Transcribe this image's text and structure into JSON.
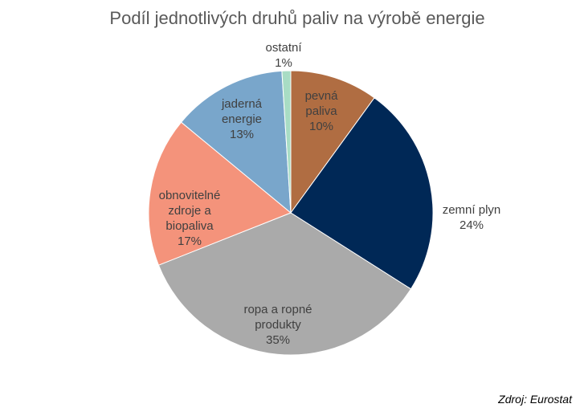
{
  "chart_data": {
    "type": "pie",
    "title": "Podíl jednotlivých druhů paliv na výrobě energie",
    "slices": [
      {
        "label_lines": [
          "pevná",
          "paliva"
        ],
        "value": 10,
        "value_text": "10%",
        "color": "#b06d42"
      },
      {
        "label_lines": [
          "zemní plyn"
        ],
        "value": 24,
        "value_text": "24%",
        "color": "#002856"
      },
      {
        "label_lines": [
          "ropa a ropné",
          "produkty"
        ],
        "value": 35,
        "value_text": "35%",
        "color": "#aaaaaa"
      },
      {
        "label_lines": [
          "obnovitelné",
          "zdroje a",
          "biopaliva"
        ],
        "value": 17,
        "value_text": "17%",
        "color": "#f4937b"
      },
      {
        "label_lines": [
          "jaderná",
          "energie"
        ],
        "value": 13,
        "value_text": "13%",
        "color": "#79a6cb"
      },
      {
        "label_lines": [
          "ostatní"
        ],
        "value": 1,
        "value_text": "1%",
        "color": "#a8dcc4"
      }
    ],
    "start": "12 o'clock, clockwise",
    "legend": "none (labels on slices)"
  },
  "source": "Zdroj: Eurostat"
}
